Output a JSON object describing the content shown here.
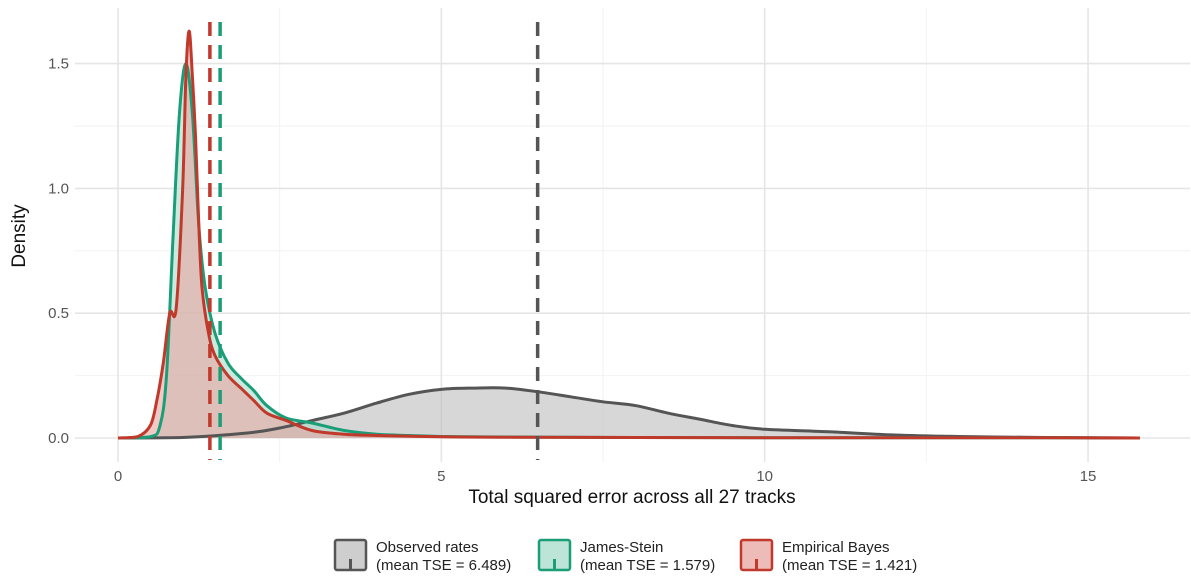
{
  "chart_data": {
    "type": "area",
    "title": "",
    "xlabel": "Total squared error across all 27 tracks",
    "ylabel": "Density",
    "xlim": [
      -1.0,
      16.0
    ],
    "ylim": [
      -0.05,
      1.7
    ],
    "x_ticks": [
      0,
      5,
      10,
      15
    ],
    "x_tick_labels": [
      "0",
      "5",
      "10",
      "15"
    ],
    "y_ticks": [
      0.0,
      0.5,
      1.0,
      1.5
    ],
    "y_tick_labels": [
      "0.0",
      "0.5",
      "1.0",
      "1.5"
    ],
    "grid": true,
    "legend_position": "bottom",
    "series": [
      {
        "key": "observed",
        "legend_line1": "Observed rates",
        "legend_line2": "(mean TSE = 6.489)",
        "color": "#555555",
        "fill": "#bdbdbd",
        "mean": 6.489,
        "x": [
          0,
          1,
          2,
          2.5,
          3,
          3.5,
          4,
          4.5,
          5,
          5.5,
          6,
          6.5,
          7,
          7.5,
          8,
          8.5,
          9,
          9.5,
          10,
          11,
          12,
          13,
          14,
          15,
          15.8
        ],
        "y": [
          0,
          0.002,
          0.02,
          0.04,
          0.07,
          0.1,
          0.14,
          0.175,
          0.195,
          0.2,
          0.2,
          0.185,
          0.165,
          0.145,
          0.13,
          0.1,
          0.075,
          0.05,
          0.035,
          0.025,
          0.012,
          0.006,
          0.003,
          0.001,
          0
        ]
      },
      {
        "key": "james_stein",
        "legend_line1": "James-Stein",
        "legend_line2": "(mean TSE = 1.579)",
        "color": "#1b9e77",
        "fill": "#a6dbc9",
        "mean": 1.579,
        "x": [
          0,
          0.5,
          0.65,
          0.75,
          0.85,
          0.95,
          1.05,
          1.15,
          1.25,
          1.35,
          1.5,
          1.7,
          1.9,
          2.1,
          2.3,
          2.6,
          3.0,
          3.5,
          4.0,
          4.5,
          5,
          6,
          7,
          8,
          10,
          12,
          14,
          15.8
        ],
        "y": [
          0,
          0.005,
          0.05,
          0.25,
          0.8,
          1.3,
          1.5,
          1.3,
          0.85,
          0.6,
          0.42,
          0.3,
          0.24,
          0.19,
          0.13,
          0.08,
          0.06,
          0.03,
          0.015,
          0.01,
          0.006,
          0.004,
          0.003,
          0.002,
          0.001,
          0.001,
          0.001,
          0
        ]
      },
      {
        "key": "empirical_bayes",
        "legend_line1": "Empirical Bayes",
        "legend_line2": "(mean TSE = 1.421)",
        "color": "#c0392b",
        "fill": "#e8a5a0",
        "mean": 1.421,
        "x": [
          0,
          0.3,
          0.5,
          0.6,
          0.7,
          0.8,
          0.9,
          1.0,
          1.05,
          1.1,
          1.15,
          1.2,
          1.25,
          1.3,
          1.4,
          1.5,
          1.7,
          1.9,
          2.1,
          2.3,
          2.6,
          3.0,
          3.5,
          4.0,
          5,
          6,
          8,
          10,
          12,
          14,
          15.8
        ],
        "y": [
          0,
          0.005,
          0.05,
          0.15,
          0.3,
          0.5,
          0.52,
          1.0,
          1.45,
          1.63,
          1.45,
          1.2,
          0.85,
          0.6,
          0.42,
          0.33,
          0.25,
          0.2,
          0.15,
          0.1,
          0.07,
          0.03,
          0.015,
          0.01,
          0.005,
          0.003,
          0.002,
          0.001,
          0.001,
          0.001,
          0
        ]
      }
    ]
  }
}
